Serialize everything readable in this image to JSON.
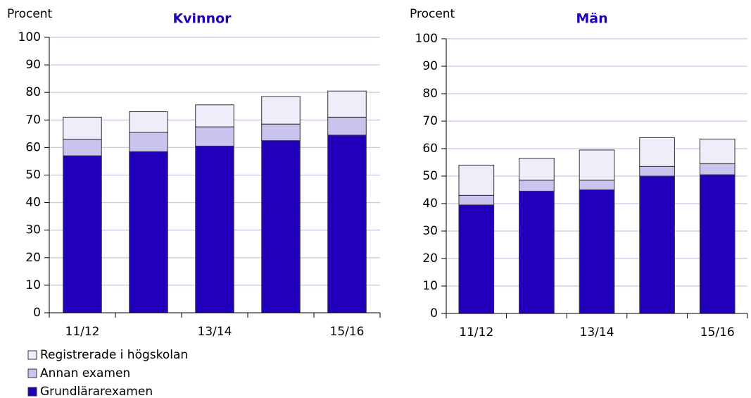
{
  "chart_data": [
    {
      "type": "stacked_bar",
      "title": "Kvinnor",
      "y_label": "Procent",
      "categories": [
        "11/12",
        null,
        "13/14",
        null,
        "15/16"
      ],
      "series": [
        {
          "name": "Grundlärarexamen",
          "color": "#2200bb",
          "values": [
            57,
            58.5,
            60.5,
            62.5,
            64.5
          ]
        },
        {
          "name": "Annan examen",
          "color": "#c8c4ee",
          "values": [
            6,
            7,
            7,
            6,
            6.5
          ]
        },
        {
          "name": "Registrerade i högskolan",
          "color": "#eeeefa",
          "values": [
            8,
            7.5,
            8,
            10,
            9.5
          ]
        }
      ],
      "ylim": [
        0,
        100
      ],
      "yticks": [
        0,
        10,
        20,
        30,
        40,
        50,
        60,
        70,
        80,
        90,
        100
      ],
      "grid": true
    },
    {
      "type": "stacked_bar",
      "title": "Män",
      "y_label": "Procent",
      "categories": [
        "11/12",
        null,
        "13/14",
        null,
        "15/16"
      ],
      "series": [
        {
          "color": "#2200bb",
          "values": [
            39.5,
            44.5,
            45,
            50,
            50.5
          ]
        },
        {
          "color": "#c8c4ee",
          "values": [
            3.5,
            4,
            3.5,
            3.5,
            4
          ]
        },
        {
          "color": "#eeeefa",
          "values": [
            11,
            8,
            11,
            10.5,
            9
          ]
        }
      ],
      "ylim": [
        0,
        100
      ],
      "yticks": [
        0,
        10,
        20,
        30,
        40,
        50,
        60,
        70,
        80,
        90,
        100
      ],
      "grid": true
    }
  ]
}
